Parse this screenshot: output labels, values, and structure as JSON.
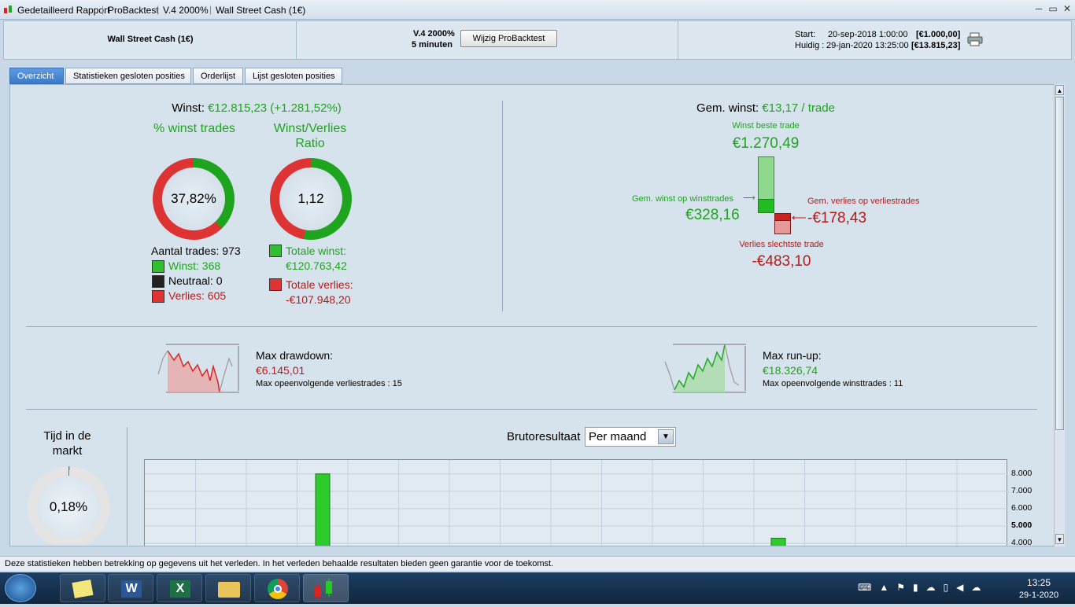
{
  "titlebar": {
    "items": [
      "Gedetailleerd Rapport",
      "ProBacktest",
      "V.4 2000%",
      "Wall Street Cash (1€)"
    ],
    "min": "─",
    "max": "▭",
    "close": "✕"
  },
  "header": {
    "instrument": "Wall Street Cash (1€)",
    "version": "V.4 2000%",
    "timeframe": "5 minuten",
    "edit_button": "Wijzig ProBacktest",
    "start_label": "Start:",
    "start_date": "20-sep-2018 1:00:00",
    "start_value": "[€1.000,00]",
    "now_label": "Huidig :",
    "now_date": "29-jan-2020 13:25:00",
    "now_value": "[€13.815,23]"
  },
  "tabs": [
    "Overzicht",
    "Statistieken gesloten posities",
    "Orderlijst",
    "Lijst gesloten posities"
  ],
  "summary": {
    "winst_label": "Winst:",
    "winst_value": "€12.815,23 (+1.281,52%)",
    "pct_title": "% winst trades",
    "ratio_title": "Winst/Verlies",
    "ratio_title2": "Ratio",
    "pct_value": "37,82%",
    "pct_fraction": 0.3782,
    "ratio_value": "1,12",
    "ratio_fraction": 0.528,
    "aantal_label": "Aantal trades:",
    "aantal_value": "973",
    "winst_trades": "Winst: 368",
    "neutraal": "Neutraal: 0",
    "verlies_trades": "Verlies: 605",
    "totale_winst_label": "Totale winst:",
    "totale_winst_value": "€120.763,42",
    "totale_verlies_label": "Totale verlies:",
    "totale_verlies_value": "-€107.948,20"
  },
  "gem": {
    "label": "Gem. winst:",
    "value": "€13,17 / trade",
    "best_label": "Winst beste trade",
    "best_value": "€1.270,49",
    "avgwin_label": "Gem. winst op winsttrades",
    "avgwin_value": "€328,16",
    "avgloss_label": "Gem. verlies op verliestrades",
    "avgloss_value": "-€178,43",
    "worst_label": "Verlies slechtste trade",
    "worst_value": "-€483,10"
  },
  "drawdown": {
    "label": "Max drawdown:",
    "value": "€6.145,01",
    "sub": "Max opeenvolgende verliestrades : 15"
  },
  "runup": {
    "label": "Max run-up:",
    "value": "€18.326,74",
    "sub": "Max opeenvolgende winsttrades : 11"
  },
  "market": {
    "title1": "Tijd in de",
    "title2": "markt",
    "value": "0,18%",
    "fraction": 0.0018
  },
  "bruto": {
    "label": "Brutoresultaat",
    "select": "Per maand",
    "arrow": "▼"
  },
  "chart_data": {
    "type": "bar",
    "title": "Brutoresultaat",
    "yticks": [
      "8.000",
      "7.000",
      "6.000",
      "5.000",
      "4.000"
    ],
    "ylim_visible": [
      3600,
      8800
    ],
    "bars": [
      {
        "value": 8000
      },
      {
        "value": 4300
      }
    ],
    "grid": true
  },
  "statusbar": {
    "text": "Deze statistieken hebben betrekking op gegevens uit het verleden. In het verleden behaalde resultaten bieden geen garantie voor de toekomst."
  },
  "taskbar": {
    "time": "13:25",
    "date": "29-1-2020"
  },
  "colors": {
    "green": "#1ea41e",
    "red": "#b31b1b",
    "accent": "#3b79c7"
  }
}
